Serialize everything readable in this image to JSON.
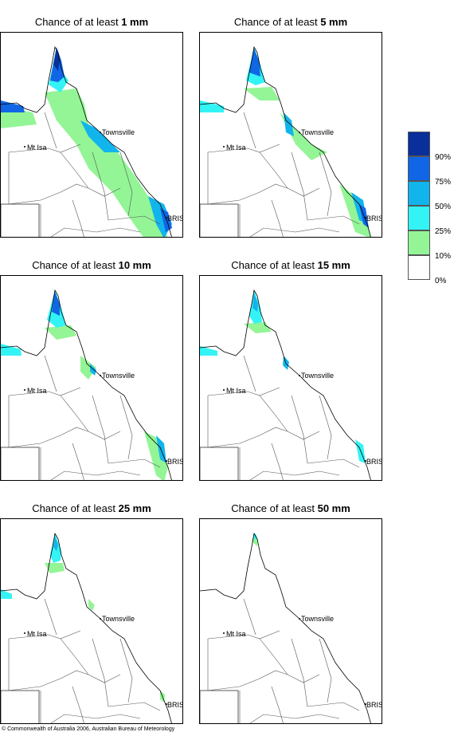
{
  "panels": [
    {
      "prefix": "Chance of at least ",
      "amount": "1 mm"
    },
    {
      "prefix": "Chance of at least ",
      "amount": "5 mm"
    },
    {
      "prefix": "Chance of at least ",
      "amount": "10 mm"
    },
    {
      "prefix": "Chance of at least ",
      "amount": "15 mm"
    },
    {
      "prefix": "Chance of at least ",
      "amount": "25 mm"
    },
    {
      "prefix": "Chance of at least ",
      "amount": "50 mm"
    }
  ],
  "places": {
    "townsville": "Townsville",
    "mt_isa": "Mt Isa",
    "bris": "BRIS"
  },
  "legend": {
    "labels": [
      "90%",
      "75%",
      "50%",
      "25%",
      "10%",
      "0%"
    ],
    "colors": [
      "#0a2f9a",
      "#1166e6",
      "#12b4ec",
      "#33f3f5",
      "#93f596",
      "#ffffff"
    ]
  },
  "copyright": "© Commonwealth of Australia 2006, Australian Bureau of Meteorology"
}
